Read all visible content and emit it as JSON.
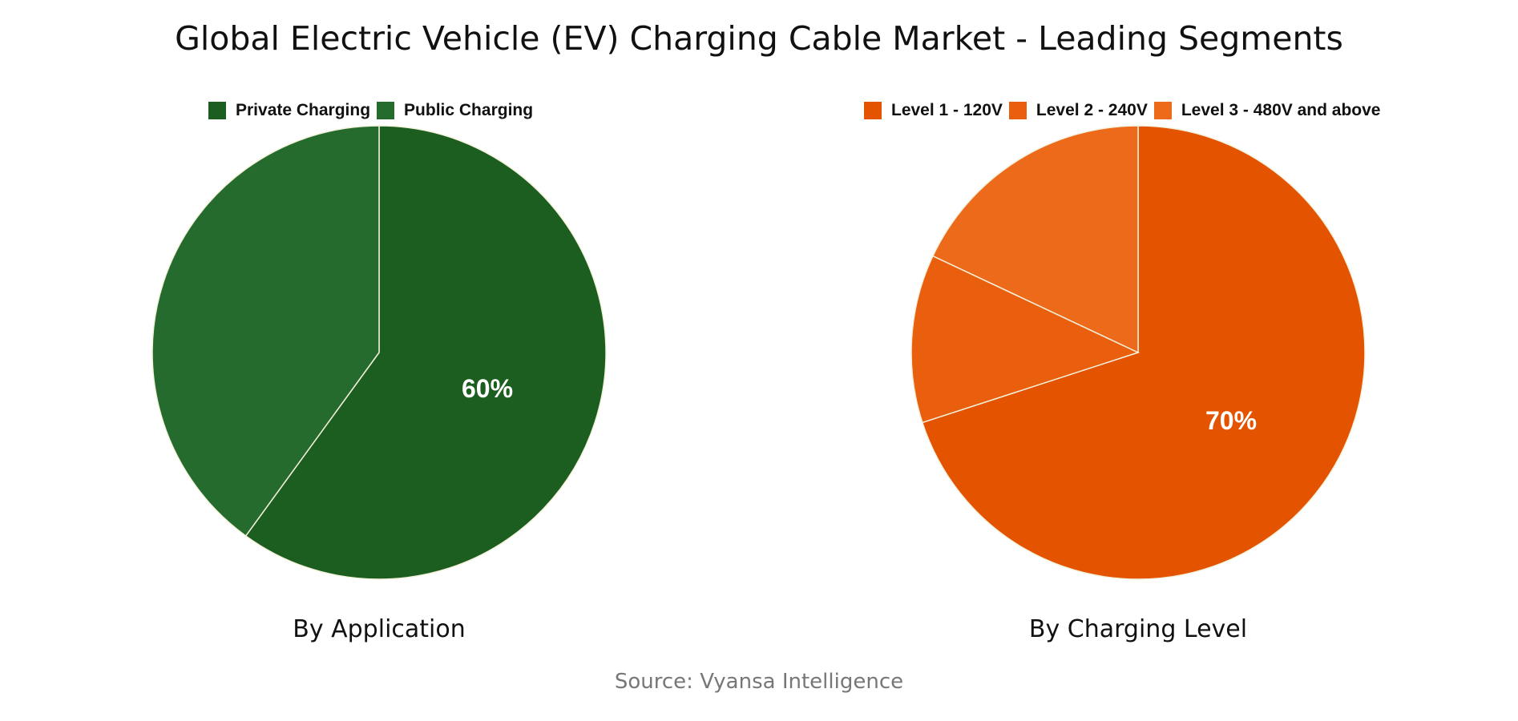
{
  "title": "Global Electric Vehicle (EV) Charging Cable Market - Leading Segments",
  "source": "Source: Vyansa Intelligence",
  "charts": [
    {
      "subtitle": "By Application",
      "legend": [
        {
          "label": "Private Charging",
          "color": "#1c5e20"
        },
        {
          "label": "Public Charging",
          "color": "#256b2e"
        }
      ],
      "label_text": "60%"
    },
    {
      "subtitle": "By Charging Level",
      "legend": [
        {
          "label": "Level 1 - 120V",
          "color": "#e35300"
        },
        {
          "label": "Level 2 - 240V",
          "color": "#ea5f0e"
        },
        {
          "label": "Level 3 - 480V and above",
          "color": "#ec6a1a"
        }
      ],
      "label_text": "70%"
    }
  ],
  "chart_data": [
    {
      "type": "pie",
      "title": "By Application",
      "categories": [
        "Private Charging",
        "Public Charging"
      ],
      "values": [
        60,
        40
      ],
      "colors": [
        "#1c5e20",
        "#256b2e"
      ],
      "data_labels": [
        "60%",
        ""
      ],
      "legend_position": "top"
    },
    {
      "type": "pie",
      "title": "By Charging Level",
      "categories": [
        "Level 1 - 120V",
        "Level 2 - 240V",
        "Level 3 - 480V and above"
      ],
      "values": [
        70,
        12,
        18
      ],
      "colors": [
        "#e35300",
        "#ea5f0e",
        "#ec6a1a"
      ],
      "data_labels": [
        "70%",
        "",
        ""
      ],
      "legend_position": "top"
    }
  ]
}
